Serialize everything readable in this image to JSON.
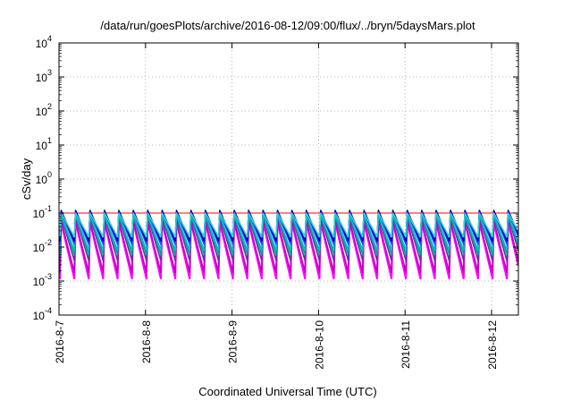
{
  "chart_data": {
    "type": "line",
    "title": "/data/run/goesPlots/archive/2016-08-12/09:00/flux/../bryn/5daysMars.plot",
    "xlabel": "Coordinated Universal Time (UTC)",
    "ylabel": "cSv/day",
    "yscale": "log",
    "ylim": [
      0.0001,
      10000
    ],
    "xlim": [
      "2016-8-7",
      "2016-8-12 09:00"
    ],
    "grid": true,
    "x_ticks": [
      "2016-8-7",
      "2016-8-8",
      "2016-8-9",
      "2016-8-10",
      "2016-8-11",
      "2016-8-12"
    ],
    "y_ticks": [
      {
        "base": "10",
        "exp": "-4",
        "value": 0.0001
      },
      {
        "base": "10",
        "exp": "-3",
        "value": 0.001
      },
      {
        "base": "10",
        "exp": "-2",
        "value": 0.01
      },
      {
        "base": "10",
        "exp": "-1",
        "value": 0.1
      },
      {
        "base": "10",
        "exp": "0",
        "value": 1
      },
      {
        "base": "10",
        "exp": "1",
        "value": 10
      },
      {
        "base": "10",
        "exp": "2",
        "value": 100
      },
      {
        "base": "10",
        "exp": "3",
        "value": 1000
      },
      {
        "base": "10",
        "exp": "4",
        "value": 10000
      }
    ],
    "reference_line": {
      "value": 0.1,
      "color": "#ff0000"
    },
    "pattern": {
      "period_hours": 4,
      "peak_offset_hours": 0.6,
      "note_values_estimated": true
    },
    "series": [
      {
        "color": "#ff00ff",
        "peak": 0.055,
        "trough": 0.0012
      },
      {
        "color": "#c000c0",
        "peak": 0.06,
        "trough": 0.0018
      },
      {
        "color": "#7030a0",
        "peak": 0.08,
        "trough": 0.004
      },
      {
        "color": "#00a0a0",
        "peak": 0.085,
        "trough": 0.006
      },
      {
        "color": "#00c0c0",
        "peak": 0.09,
        "trough": 0.008
      },
      {
        "color": "#2050ff",
        "peak": 0.11,
        "trough": 0.012
      },
      {
        "color": "#0000c0",
        "peak": 0.12,
        "trough": 0.015
      },
      {
        "color": "#2fd0d0",
        "peak": 0.1,
        "trough": 0.02
      }
    ]
  }
}
